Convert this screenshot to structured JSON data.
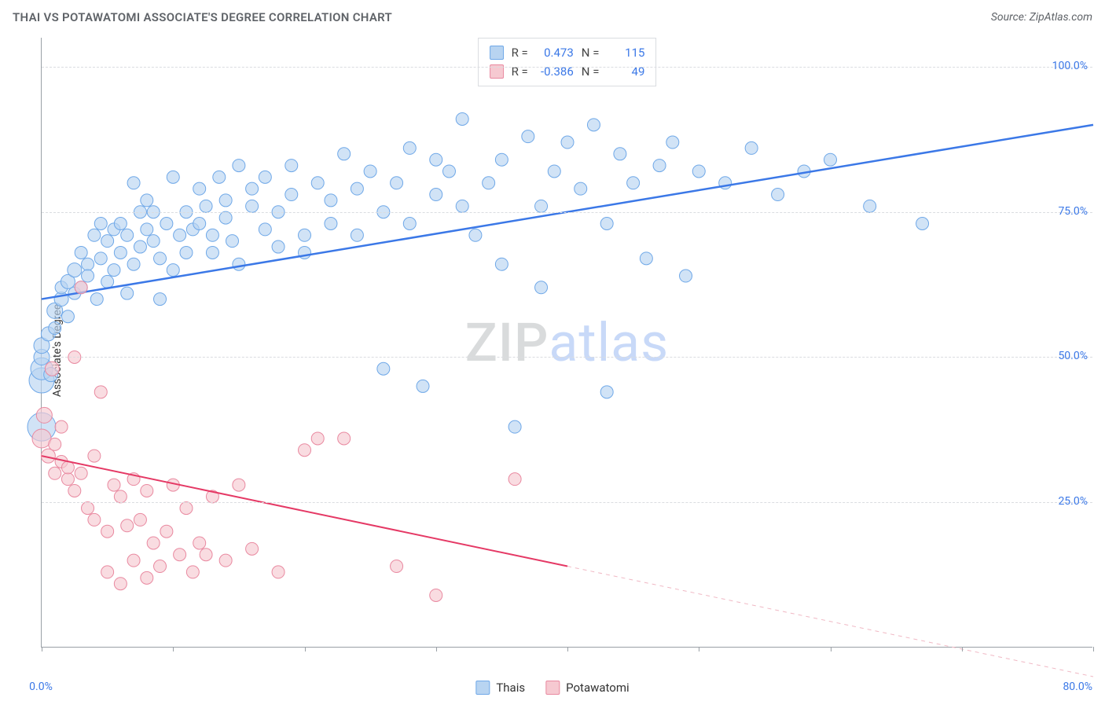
{
  "header": {
    "title": "THAI VS POTAWATOMI ASSOCIATE'S DEGREE CORRELATION CHART",
    "source_prefix": "Source: ",
    "source_name": "ZipAtlas.com"
  },
  "y_axis": {
    "label": "Associate's Degree",
    "min": 0,
    "max": 105,
    "gridlines": [
      25,
      50,
      75,
      100
    ],
    "tick_labels": [
      "25.0%",
      "50.0%",
      "75.0%",
      "100.0%"
    ],
    "label_color": "#333333",
    "tick_color": "#3b78e7",
    "grid_color": "#dadce0"
  },
  "x_axis": {
    "min": 0,
    "max": 80,
    "ticks": [
      0,
      10,
      20,
      30,
      40,
      50,
      60,
      70,
      80
    ],
    "min_label": "0.0%",
    "max_label": "80.0%",
    "tick_color": "#3b78e7"
  },
  "watermark": {
    "part1": "ZIP",
    "part2": "atlas"
  },
  "stats": {
    "series1": {
      "r_label": "R =",
      "r_value": "0.473",
      "n_label": "N =",
      "n_value": "115"
    },
    "series2": {
      "r_label": "R =",
      "r_value": "-0.386",
      "n_label": "N =",
      "n_value": "49"
    }
  },
  "legend": {
    "series1_name": "Thais",
    "series2_name": "Potawatomi"
  },
  "chart": {
    "type": "scatter",
    "background_color": "#ffffff",
    "axis_color": "#9aa0a6",
    "series": [
      {
        "name": "Thais",
        "fill_color": "#b8d4f1",
        "stroke_color": "#6fa8e8",
        "marker_radius_range": [
          7,
          14
        ],
        "trend": {
          "color": "#3b78e7",
          "width": 2.5,
          "y_at_xmin": 60,
          "y_at_xmax": 90,
          "dashed_extend": false
        },
        "points": [
          [
            0,
            38,
            18
          ],
          [
            0,
            46,
            16
          ],
          [
            0,
            48,
            14
          ],
          [
            0,
            50,
            10
          ],
          [
            0,
            52,
            10
          ],
          [
            0.5,
            54,
            9
          ],
          [
            0.7,
            47,
            9
          ],
          [
            1,
            55,
            8
          ],
          [
            1,
            58,
            10
          ],
          [
            1.5,
            60,
            9
          ],
          [
            1.5,
            62,
            8
          ],
          [
            2,
            57,
            8
          ],
          [
            2,
            63,
            9
          ],
          [
            2.5,
            61,
            8
          ],
          [
            2.5,
            65,
            9
          ],
          [
            3,
            62,
            8
          ],
          [
            3,
            68,
            8
          ],
          [
            3.5,
            66,
            8
          ],
          [
            3.5,
            64,
            8
          ],
          [
            4,
            71,
            8
          ],
          [
            4.2,
            60,
            8
          ],
          [
            4.5,
            67,
            8
          ],
          [
            4.5,
            73,
            8
          ],
          [
            5,
            63,
            8
          ],
          [
            5,
            70,
            8
          ],
          [
            5.5,
            72,
            8
          ],
          [
            5.5,
            65,
            8
          ],
          [
            6,
            68,
            8
          ],
          [
            6,
            73,
            8
          ],
          [
            6.5,
            61,
            8
          ],
          [
            6.5,
            71,
            8
          ],
          [
            7,
            80,
            8
          ],
          [
            7,
            66,
            8
          ],
          [
            7.5,
            75,
            8
          ],
          [
            7.5,
            69,
            8
          ],
          [
            8,
            72,
            8
          ],
          [
            8,
            77,
            8
          ],
          [
            8.5,
            70,
            8
          ],
          [
            8.5,
            75,
            8
          ],
          [
            9,
            67,
            8
          ],
          [
            9,
            60,
            8
          ],
          [
            9.5,
            73,
            8
          ],
          [
            10,
            65,
            8
          ],
          [
            10,
            81,
            8
          ],
          [
            10.5,
            71,
            8
          ],
          [
            11,
            75,
            8
          ],
          [
            11,
            68,
            8
          ],
          [
            11.5,
            72,
            8
          ],
          [
            12,
            79,
            8
          ],
          [
            12,
            73,
            8
          ],
          [
            12.5,
            76,
            8
          ],
          [
            13,
            71,
            8
          ],
          [
            13,
            68,
            8
          ],
          [
            13.5,
            81,
            8
          ],
          [
            14,
            74,
            8
          ],
          [
            14,
            77,
            8
          ],
          [
            14.5,
            70,
            8
          ],
          [
            15,
            83,
            8
          ],
          [
            15,
            66,
            8
          ],
          [
            16,
            76,
            8
          ],
          [
            16,
            79,
            8
          ],
          [
            17,
            72,
            8
          ],
          [
            17,
            81,
            8
          ],
          [
            18,
            69,
            8
          ],
          [
            18,
            75,
            8
          ],
          [
            19,
            78,
            8
          ],
          [
            19,
            83,
            8
          ],
          [
            20,
            71,
            8
          ],
          [
            20,
            68,
            8
          ],
          [
            21,
            80,
            8
          ],
          [
            22,
            73,
            8
          ],
          [
            22,
            77,
            8
          ],
          [
            23,
            85,
            8
          ],
          [
            24,
            79,
            8
          ],
          [
            24,
            71,
            8
          ],
          [
            25,
            82,
            8
          ],
          [
            26,
            75,
            8
          ],
          [
            26,
            48,
            8
          ],
          [
            27,
            80,
            8
          ],
          [
            28,
            73,
            8
          ],
          [
            28,
            86,
            8
          ],
          [
            29,
            45,
            8
          ],
          [
            30,
            84,
            8
          ],
          [
            30,
            78,
            8
          ],
          [
            31,
            82,
            8
          ],
          [
            32,
            76,
            8
          ],
          [
            32,
            91,
            8
          ],
          [
            33,
            71,
            8
          ],
          [
            34,
            80,
            8
          ],
          [
            35,
            84,
            8
          ],
          [
            35,
            66,
            8
          ],
          [
            36,
            38,
            8
          ],
          [
            37,
            88,
            8
          ],
          [
            38,
            76,
            8
          ],
          [
            38,
            62,
            8
          ],
          [
            39,
            82,
            8
          ],
          [
            40,
            87,
            8
          ],
          [
            41,
            79,
            8
          ],
          [
            42,
            90,
            8
          ],
          [
            43,
            73,
            8
          ],
          [
            43,
            44,
            8
          ],
          [
            44,
            85,
            8
          ],
          [
            45,
            80,
            8
          ],
          [
            46,
            67,
            8
          ],
          [
            47,
            83,
            8
          ],
          [
            48,
            87,
            8
          ],
          [
            49,
            64,
            8
          ],
          [
            50,
            82,
            8
          ],
          [
            52,
            80,
            8
          ],
          [
            54,
            86,
            8
          ],
          [
            56,
            78,
            8
          ],
          [
            58,
            82,
            8
          ],
          [
            60,
            84,
            8
          ],
          [
            63,
            76,
            8
          ],
          [
            67,
            73,
            8
          ]
        ]
      },
      {
        "name": "Potawatomi",
        "fill_color": "#f6c9d1",
        "stroke_color": "#e989a0",
        "marker_radius_range": [
          7,
          12
        ],
        "trend": {
          "color": "#e53965",
          "width": 2,
          "y_at_xmin": 33,
          "y_at_xmax": -5,
          "solid_until_x": 40,
          "dashed_extend": true,
          "dash_color": "#f0b8c4"
        },
        "points": [
          [
            0,
            36,
            12
          ],
          [
            0.2,
            40,
            10
          ],
          [
            0.5,
            33,
            9
          ],
          [
            0.8,
            48,
            9
          ],
          [
            1,
            35,
            8
          ],
          [
            1,
            30,
            8
          ],
          [
            1.5,
            32,
            8
          ],
          [
            1.5,
            38,
            8
          ],
          [
            2,
            29,
            8
          ],
          [
            2,
            31,
            8
          ],
          [
            2.5,
            50,
            8
          ],
          [
            2.5,
            27,
            8
          ],
          [
            3,
            62,
            8
          ],
          [
            3,
            30,
            8
          ],
          [
            3.5,
            24,
            8
          ],
          [
            4,
            33,
            8
          ],
          [
            4,
            22,
            8
          ],
          [
            4.5,
            44,
            8
          ],
          [
            5,
            20,
            8
          ],
          [
            5,
            13,
            8
          ],
          [
            5.5,
            28,
            8
          ],
          [
            6,
            26,
            8
          ],
          [
            6,
            11,
            8
          ],
          [
            6.5,
            21,
            8
          ],
          [
            7,
            29,
            8
          ],
          [
            7,
            15,
            8
          ],
          [
            7.5,
            22,
            8
          ],
          [
            8,
            12,
            8
          ],
          [
            8,
            27,
            8
          ],
          [
            8.5,
            18,
            8
          ],
          [
            9,
            14,
            8
          ],
          [
            9.5,
            20,
            8
          ],
          [
            10,
            28,
            8
          ],
          [
            10.5,
            16,
            8
          ],
          [
            11,
            24,
            8
          ],
          [
            11.5,
            13,
            8
          ],
          [
            12,
            18,
            8
          ],
          [
            12.5,
            16,
            8
          ],
          [
            13,
            26,
            8
          ],
          [
            14,
            15,
            8
          ],
          [
            15,
            28,
            8
          ],
          [
            16,
            17,
            8
          ],
          [
            18,
            13,
            8
          ],
          [
            20,
            34,
            8
          ],
          [
            21,
            36,
            8
          ],
          [
            23,
            36,
            8
          ],
          [
            27,
            14,
            8
          ],
          [
            30,
            9,
            8
          ],
          [
            36,
            29,
            8
          ]
        ]
      }
    ]
  }
}
